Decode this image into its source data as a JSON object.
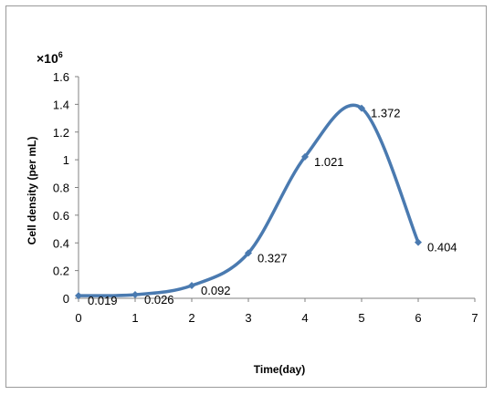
{
  "chart_data": {
    "type": "line",
    "x": [
      0,
      1,
      2,
      3,
      4,
      5,
      6
    ],
    "y": [
      0.019,
      0.026,
      0.092,
      0.327,
      1.021,
      1.372,
      0.404
    ],
    "data_labels": [
      "0.019",
      "0.026",
      "0.092",
      "0.327",
      "1.021",
      "1.372",
      "0.404"
    ],
    "xlabel": "Time(day)",
    "ylabel": "Cell density (per mL)",
    "multiplier": {
      "prefix": "×10",
      "exponent": "6"
    },
    "xlim": [
      0,
      7
    ],
    "ylim": [
      0,
      1.6
    ],
    "xticks": [
      "0",
      "1",
      "2",
      "3",
      "4",
      "5",
      "6",
      "7"
    ],
    "yticks": [
      "0",
      "0.2",
      "0.4",
      "0.6",
      "0.8",
      "1",
      "1.2",
      "1.4",
      "1.6"
    ],
    "smooth": true,
    "grid": false,
    "legend": "none",
    "line_color": "#4a7ab0",
    "marker_color": "#4a7ab0"
  }
}
